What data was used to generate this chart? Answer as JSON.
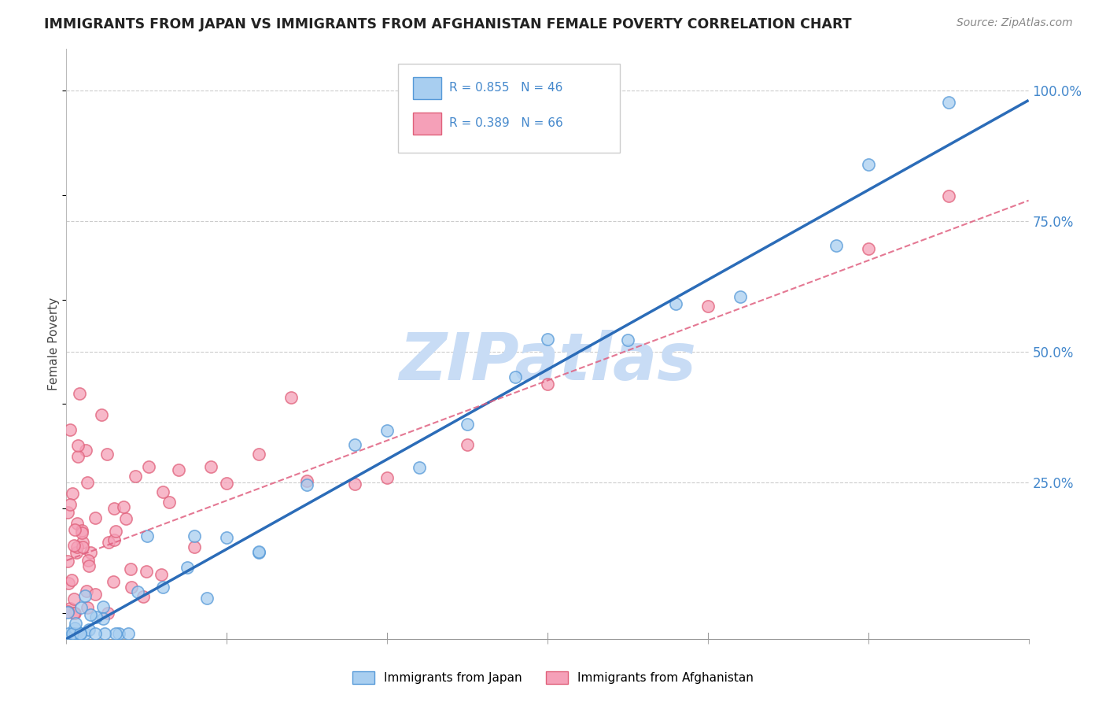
{
  "title": "IMMIGRANTS FROM JAPAN VS IMMIGRANTS FROM AFGHANISTAN FEMALE POVERTY CORRELATION CHART",
  "source": "Source: ZipAtlas.com",
  "ylabel": "Female Poverty",
  "y_range": [
    -0.05,
    1.08
  ],
  "x_range": [
    0.0,
    0.6
  ],
  "japan_R": 0.855,
  "japan_N": 46,
  "afghan_R": 0.389,
  "afghan_N": 66,
  "japan_color": "#A8CEF0",
  "afghan_color": "#F5A0B8",
  "japan_edge_color": "#5599D8",
  "afghan_edge_color": "#E0607A",
  "japan_line_color": "#2B6CB8",
  "afghan_line_color": "#E06080",
  "watermark_color": "#C8DCF5",
  "background_color": "#FFFFFF",
  "grid_color": "#CCCCCC",
  "ytick_color": "#4488CC",
  "japan_line_slope": 1.72,
  "japan_line_intercept": -0.05,
  "afghan_line_slope": 1.15,
  "afghan_line_intercept": 0.1
}
